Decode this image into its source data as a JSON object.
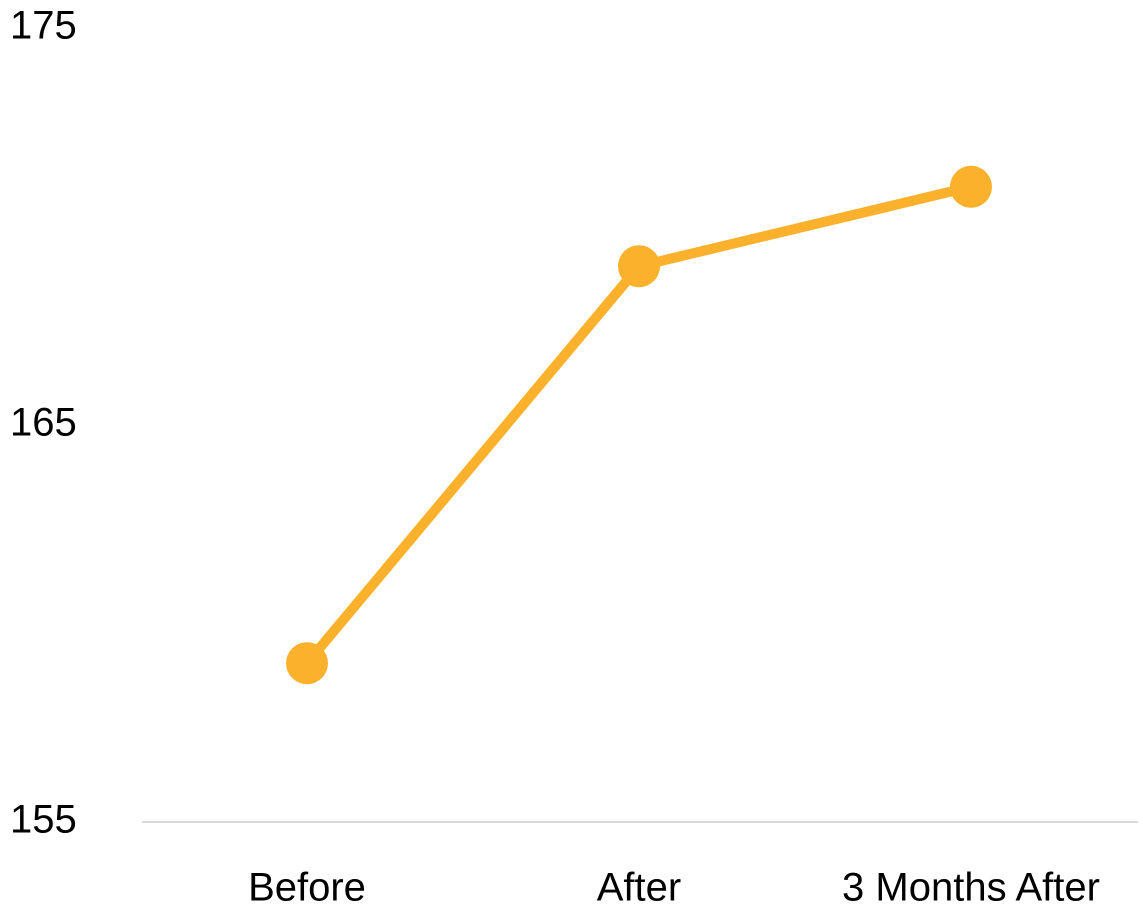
{
  "chart_data": {
    "type": "line",
    "title": "",
    "xlabel": "",
    "ylabel": "",
    "categories": [
      "Before",
      "After",
      "3 Months After"
    ],
    "series": [
      {
        "values": [
          159.0,
          169.0,
          171.0
        ],
        "color": "#FBB12B"
      }
    ],
    "ylim": [
      155,
      175
    ],
    "yticks": [
      155,
      165,
      175
    ],
    "grid": false,
    "legend": "none",
    "baseline_color": "#D9D9D9"
  }
}
